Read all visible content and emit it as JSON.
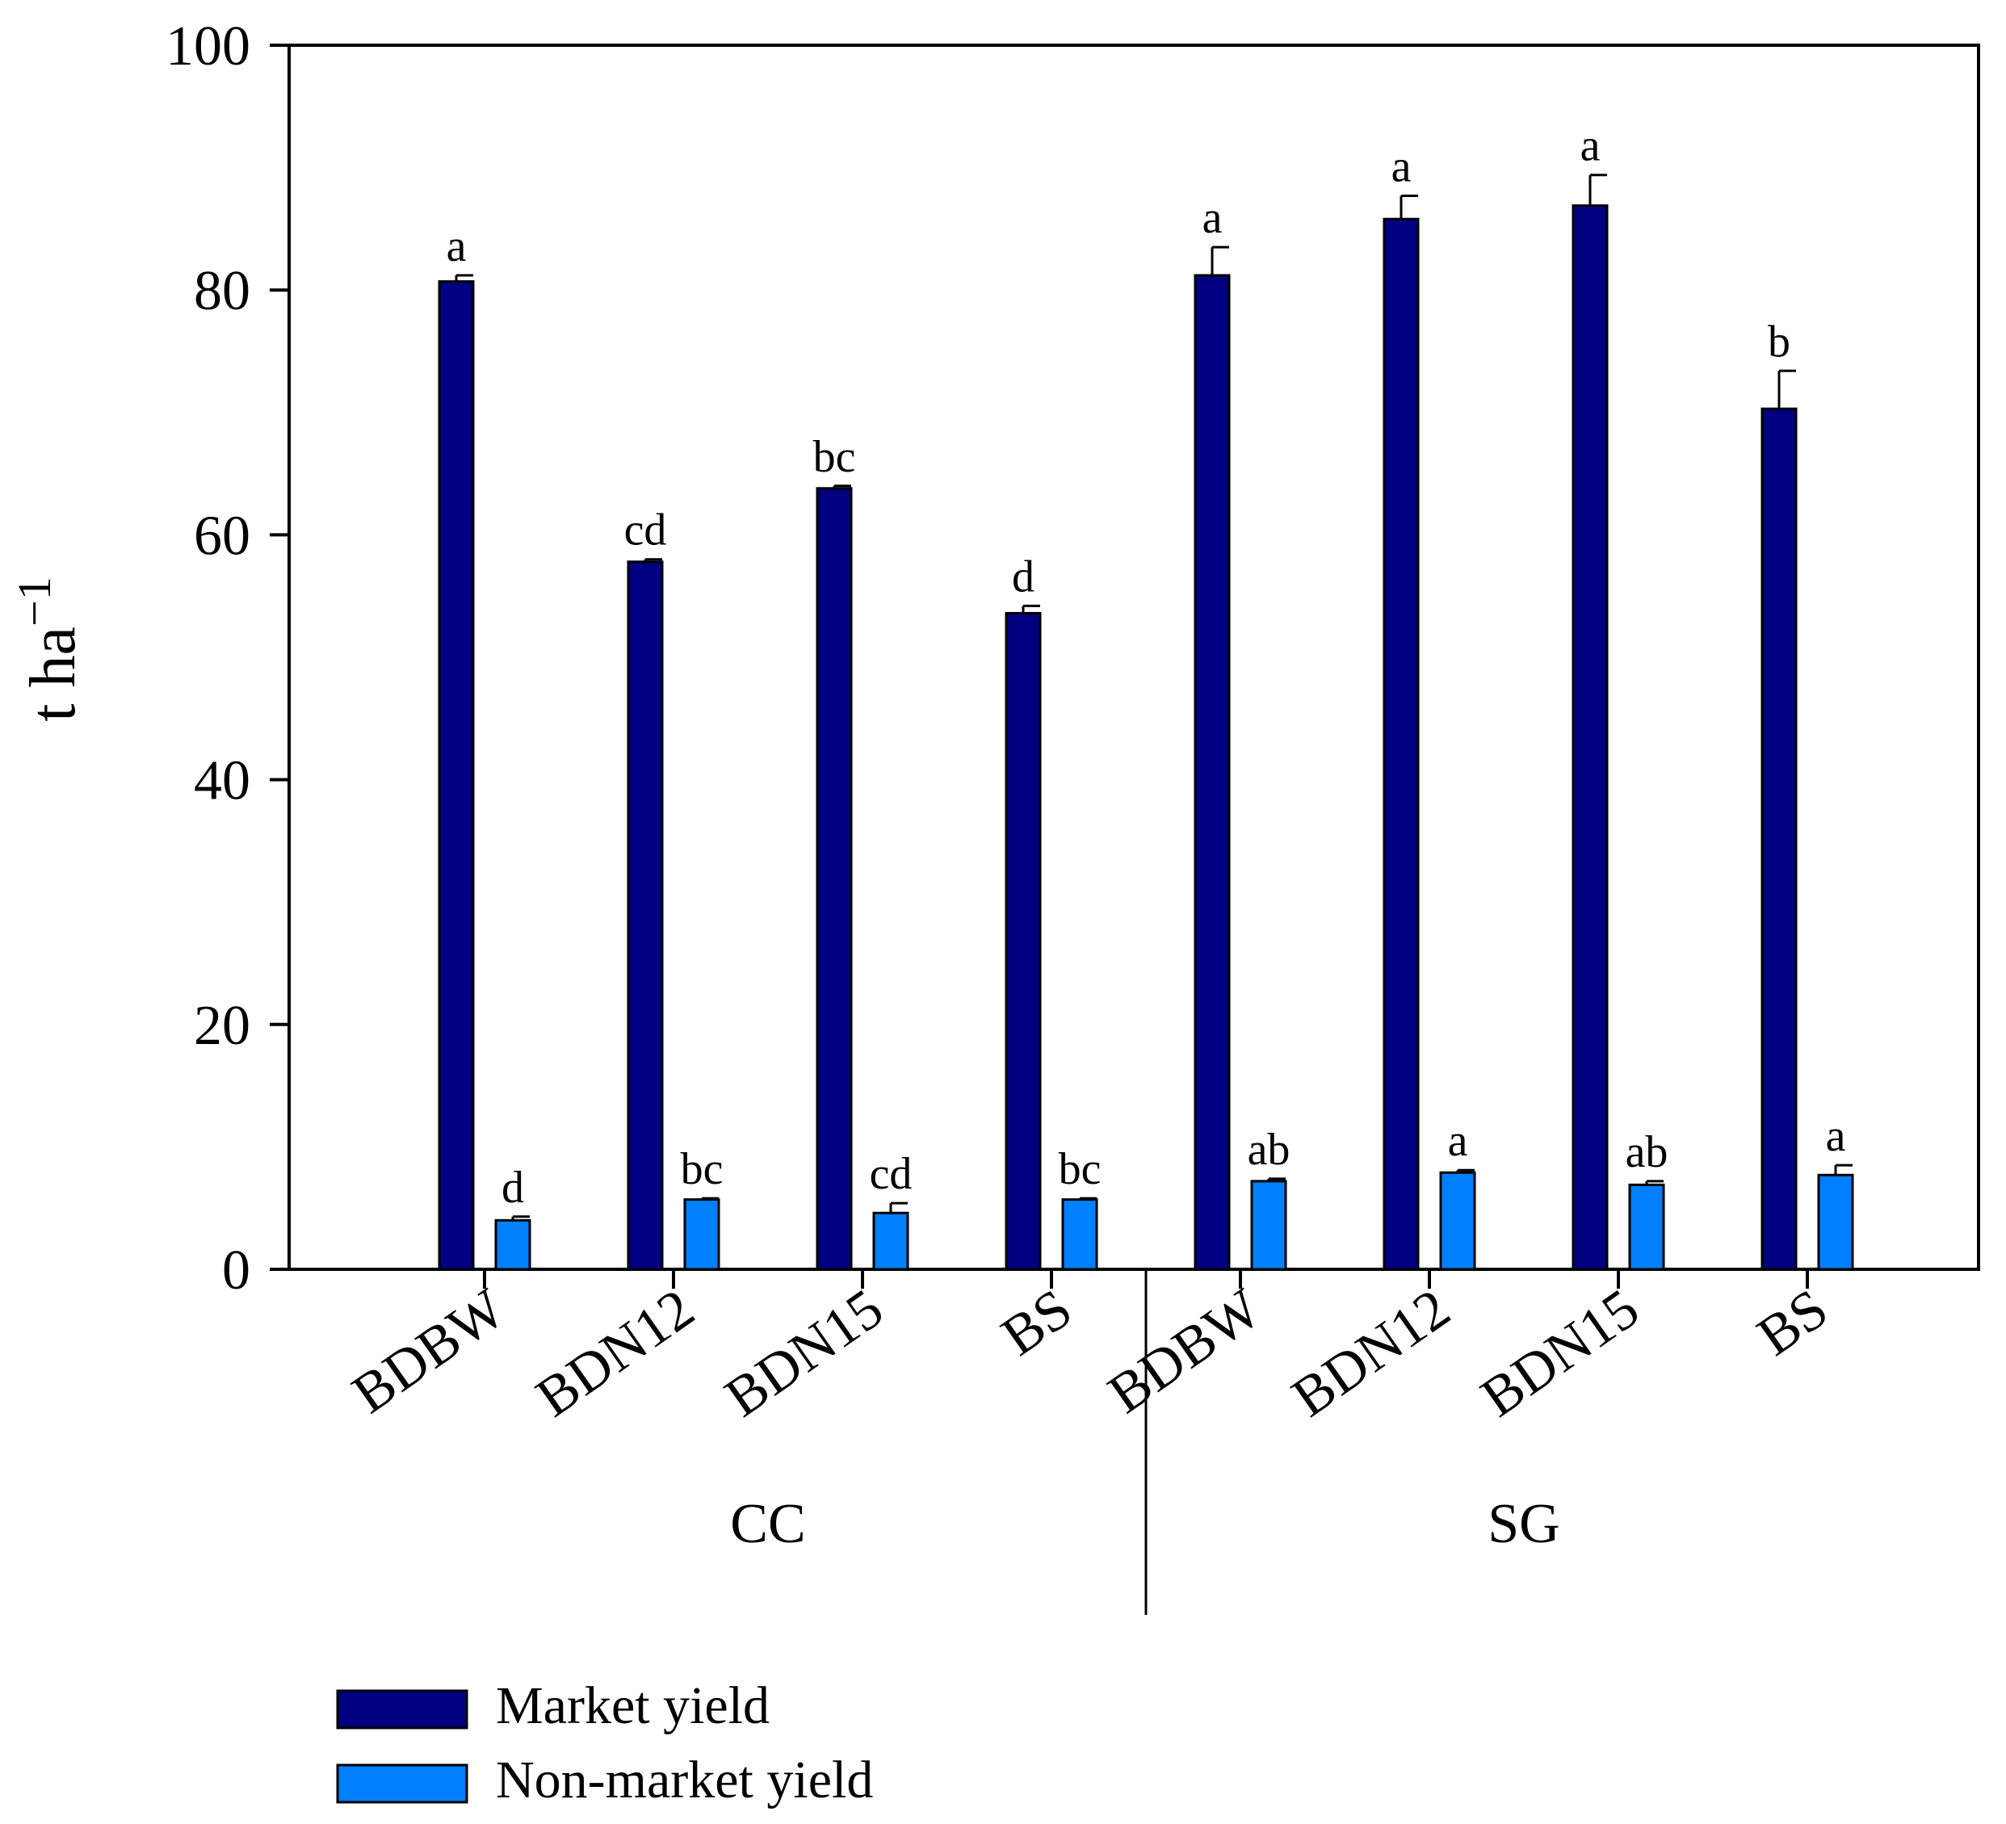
{
  "chart_data": {
    "type": "bar",
    "ylabel": "t ha",
    "ylabel_superscript": "−1",
    "ylim": [
      0,
      100
    ],
    "yticks": [
      0,
      20,
      40,
      60,
      80,
      100
    ],
    "groups": [
      {
        "name": "CC",
        "categories": [
          "BDBW",
          "BDN12",
          "BDN15",
          "BS"
        ]
      },
      {
        "name": "SG",
        "categories": [
          "BDBW",
          "BDN12",
          "BDN15",
          "BS"
        ]
      }
    ],
    "series": [
      {
        "name": "Market yield",
        "color": "#000080",
        "values": [
          80.7,
          57.8,
          63.8,
          53.6,
          81.2,
          85.8,
          86.9,
          70.3
        ],
        "errors": [
          0.5,
          0.2,
          0.2,
          0.6,
          2.3,
          1.9,
          2.5,
          3.1
        ],
        "labels": [
          "a",
          "cd",
          "bc",
          "d",
          "a",
          "a",
          "a",
          "b"
        ]
      },
      {
        "name": "Non-market yield",
        "color": "#0080FF",
        "values": [
          4.0,
          5.7,
          4.6,
          5.7,
          7.2,
          7.9,
          6.9,
          7.7
        ],
        "errors": [
          0.3,
          0.1,
          0.8,
          0.1,
          0.2,
          0.2,
          0.3,
          0.8
        ],
        "labels": [
          "d",
          "bc",
          "cd",
          "bc",
          "ab",
          "a",
          "ab",
          "a"
        ]
      }
    ],
    "legend_position": "bottom-left"
  }
}
